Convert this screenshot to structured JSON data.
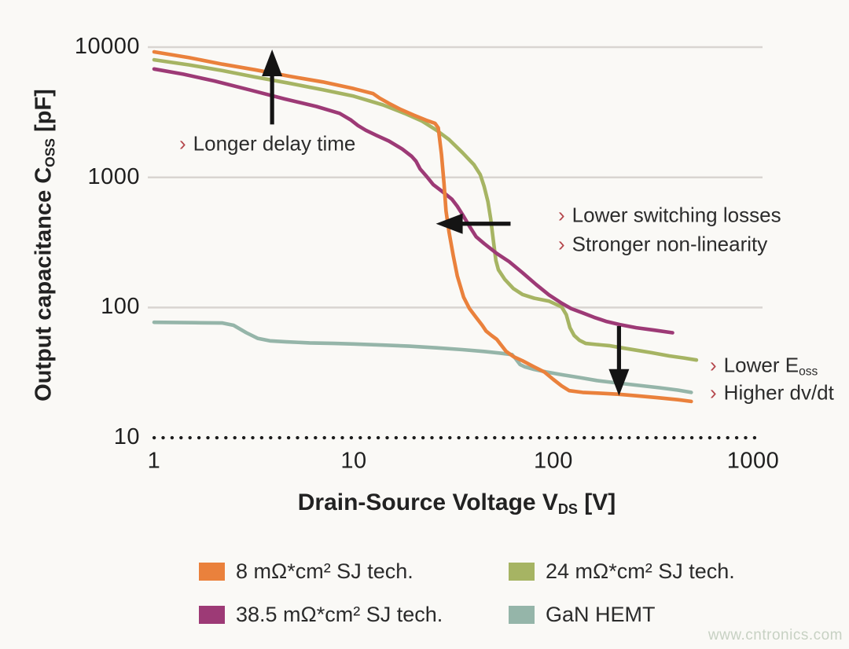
{
  "page": {
    "watermark": "www.cntronics.com",
    "background": "#faf9f6"
  },
  "colors": {
    "grid": "#d9d5d1",
    "dotted_axis": "#1c1c1c",
    "arrow": "#141414",
    "bullet": "#b5484d",
    "text": "#2b2b2b"
  },
  "chart_data": {
    "type": "line",
    "x_scale": "log",
    "y_scale": "log",
    "xlabel": {
      "main": "Drain-Source Voltage V",
      "sub": "DS",
      "unit": " [V]"
    },
    "ylabel": {
      "main": "Output capacitance C",
      "sub": "OSS",
      "unit": " [pF]"
    },
    "x_ticks": [
      "1",
      "10",
      "100",
      "1000"
    ],
    "y_ticks": [
      "10000",
      "1000",
      "100",
      "10"
    ],
    "xlim": [
      1,
      1150
    ],
    "ylim": [
      10,
      10000
    ],
    "grid": {
      "solid_y": [
        10000,
        1000,
        100
      ],
      "dotted_y": [
        10
      ],
      "vertical": false
    },
    "legend_position": "bottom",
    "series": [
      {
        "name": "24 mΩ*cm² SJ tech.",
        "color": "#a6b463",
        "points": [
          [
            1,
            8000
          ],
          [
            1.5,
            7300
          ],
          [
            2.2,
            6600
          ],
          [
            3.2,
            5900
          ],
          [
            4.7,
            5300
          ],
          [
            7,
            4700
          ],
          [
            10,
            4200
          ],
          [
            14,
            3600
          ],
          [
            18,
            3100
          ],
          [
            22,
            2700
          ],
          [
            26,
            2300
          ],
          [
            30,
            1950
          ],
          [
            35,
            1550
          ],
          [
            40,
            1250
          ],
          [
            43,
            1050
          ],
          [
            45,
            850
          ],
          [
            47,
            650
          ],
          [
            48.5,
            480
          ],
          [
            50,
            330
          ],
          [
            51.5,
            230
          ],
          [
            53,
            195
          ],
          [
            57,
            165
          ],
          [
            63,
            140
          ],
          [
            70,
            126
          ],
          [
            80,
            118
          ],
          [
            95,
            112
          ],
          [
            110,
            101
          ],
          [
            116,
            88
          ],
          [
            121,
            70
          ],
          [
            127,
            61
          ],
          [
            135,
            56
          ],
          [
            145,
            53
          ],
          [
            165,
            52
          ],
          [
            190,
            51
          ],
          [
            220,
            49
          ],
          [
            260,
            47
          ],
          [
            310,
            45
          ],
          [
            380,
            42.5
          ],
          [
            450,
            41
          ],
          [
            520,
            39.5
          ]
        ]
      },
      {
        "name": "38.5 mΩ*cm² SJ tech.",
        "color": "#9d3a76",
        "points": [
          [
            1,
            6800
          ],
          [
            1.4,
            6200
          ],
          [
            2,
            5500
          ],
          [
            3,
            4700
          ],
          [
            4.5,
            4000
          ],
          [
            6.5,
            3500
          ],
          [
            8.5,
            3100
          ],
          [
            9.7,
            2750
          ],
          [
            10.5,
            2500
          ],
          [
            11.5,
            2300
          ],
          [
            13,
            2100
          ],
          [
            15,
            1900
          ],
          [
            17.5,
            1650
          ],
          [
            19.5,
            1450
          ],
          [
            20.5,
            1330
          ],
          [
            21.5,
            1160
          ],
          [
            23,
            1030
          ],
          [
            25,
            880
          ],
          [
            28,
            770
          ],
          [
            31,
            680
          ],
          [
            33,
            600
          ],
          [
            35,
            520
          ],
          [
            38,
            420
          ],
          [
            41,
            350
          ],
          [
            45,
            310
          ],
          [
            52,
            260
          ],
          [
            60,
            225
          ],
          [
            70,
            185
          ],
          [
            82,
            150
          ],
          [
            95,
            125
          ],
          [
            110,
            108
          ],
          [
            123,
            98
          ],
          [
            140,
            91
          ],
          [
            160,
            84
          ],
          [
            185,
            78
          ],
          [
            215,
            74
          ],
          [
            260,
            70
          ],
          [
            320,
            67
          ],
          [
            395,
            64
          ]
        ]
      },
      {
        "name": "GaN HEMT",
        "color": "#95b5a9",
        "points": [
          [
            1,
            77
          ],
          [
            1.6,
            76.5
          ],
          [
            2.2,
            76
          ],
          [
            2.5,
            73
          ],
          [
            2.9,
            64
          ],
          [
            3.3,
            58
          ],
          [
            3.8,
            55.5
          ],
          [
            4.6,
            54.5
          ],
          [
            6,
            53.5
          ],
          [
            8,
            53
          ],
          [
            10,
            52.5
          ],
          [
            14,
            51.5
          ],
          [
            19,
            50.5
          ],
          [
            26,
            49
          ],
          [
            35,
            47.5
          ],
          [
            45,
            46
          ],
          [
            55,
            44.5
          ],
          [
            62,
            43.5
          ],
          [
            65,
            40
          ],
          [
            68,
            36.5
          ],
          [
            72,
            35
          ],
          [
            80,
            33.5
          ],
          [
            92,
            32
          ],
          [
            110,
            30.5
          ],
          [
            135,
            29
          ],
          [
            165,
            27.5
          ],
          [
            210,
            26.3
          ],
          [
            270,
            25.2
          ],
          [
            340,
            24.2
          ],
          [
            420,
            23.2
          ],
          [
            490,
            22.3
          ]
        ]
      },
      {
        "name": "8 mΩ*cm² SJ tech.",
        "color": "#ea813c",
        "points": [
          [
            1,
            9200
          ],
          [
            1.5,
            8300
          ],
          [
            2.2,
            7400
          ],
          [
            3.2,
            6700
          ],
          [
            4.7,
            6000
          ],
          [
            7,
            5400
          ],
          [
            10,
            4800
          ],
          [
            12.5,
            4400
          ],
          [
            13.5,
            4050
          ],
          [
            15,
            3700
          ],
          [
            17,
            3350
          ],
          [
            20,
            3000
          ],
          [
            23,
            2750
          ],
          [
            25.5,
            2600
          ],
          [
            26.5,
            2400
          ],
          [
            27.5,
            1500
          ],
          [
            28.3,
            900
          ],
          [
            29,
            550
          ],
          [
            30,
            380
          ],
          [
            31.5,
            250
          ],
          [
            33,
            175
          ],
          [
            35.5,
            120
          ],
          [
            38,
            98
          ],
          [
            41,
            84
          ],
          [
            44,
            73
          ],
          [
            46,
            66
          ],
          [
            49,
            61
          ],
          [
            52,
            57
          ],
          [
            55,
            51
          ],
          [
            58,
            46
          ],
          [
            63,
            42
          ],
          [
            70,
            39
          ],
          [
            80,
            35
          ],
          [
            90,
            32
          ],
          [
            100,
            28
          ],
          [
            110,
            25
          ],
          [
            120,
            23
          ],
          [
            140,
            22.3
          ],
          [
            170,
            22
          ],
          [
            210,
            21.6
          ],
          [
            260,
            21
          ],
          [
            330,
            20.3
          ],
          [
            420,
            19.6
          ],
          [
            490,
            19
          ]
        ]
      }
    ],
    "annotations": [
      {
        "bullet": "›",
        "text": "Longer delay time",
        "sub": ""
      },
      {
        "bullet": "›",
        "text": "Lower switching losses",
        "sub": ""
      },
      {
        "bullet": "›",
        "text": "Stronger non-linearity",
        "sub": ""
      },
      {
        "bullet": "›",
        "text": "Lower E",
        "sub": "oss"
      },
      {
        "bullet": "›",
        "text": "Higher dv/dt",
        "sub": ""
      }
    ],
    "arrows": [
      {
        "dir": "up",
        "x": 3.9,
        "from_y": 2550,
        "to_y": 9600
      },
      {
        "dir": "left",
        "y": 440,
        "from_x": 61,
        "to_x": 25.8
      },
      {
        "dir": "down",
        "x": 213,
        "from_y": 72,
        "to_y": 21
      }
    ]
  },
  "legend": {
    "items": [
      {
        "label": "8 mΩ*cm² SJ tech.",
        "color": "#ea813c"
      },
      {
        "label": "24 mΩ*cm² SJ tech.",
        "color": "#a6b463"
      },
      {
        "label": "38.5 mΩ*cm² SJ tech.",
        "color": "#9d3a76"
      },
      {
        "label": "GaN HEMT",
        "color": "#95b5a9"
      }
    ]
  }
}
